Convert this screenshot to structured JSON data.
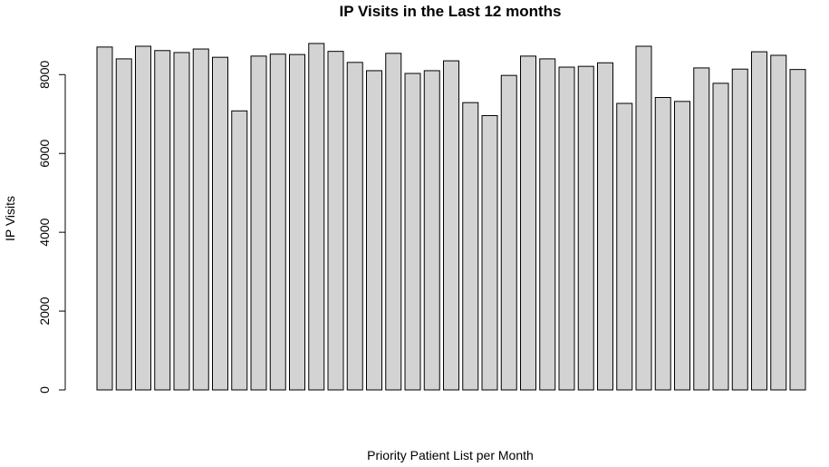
{
  "chart_data": {
    "type": "bar",
    "title": "IP Visits in the Last 12 months",
    "xlabel": "Priority Patient List per Month",
    "ylabel": "IP Visits",
    "ylim": [
      0,
      8950
    ],
    "yticks": [
      "0",
      "2000",
      "4000",
      "6000",
      "8000"
    ],
    "ytick_values": [
      0,
      2000,
      4000,
      6000,
      8000
    ],
    "values": [
      8700,
      8400,
      8720,
      8610,
      8560,
      8650,
      8440,
      7080,
      8470,
      8520,
      8510,
      8790,
      8590,
      8310,
      8100,
      8540,
      8030,
      8100,
      8350,
      7290,
      6960,
      7980,
      8470,
      8400,
      8190,
      8210,
      8300,
      7270,
      8720,
      7420,
      7320,
      8170,
      7780,
      8140,
      8580,
      8490,
      8130
    ],
    "grid": false,
    "legend": "none",
    "colors": {
      "bar_fill": "#d3d3d3",
      "bar_stroke": "#000000"
    }
  }
}
